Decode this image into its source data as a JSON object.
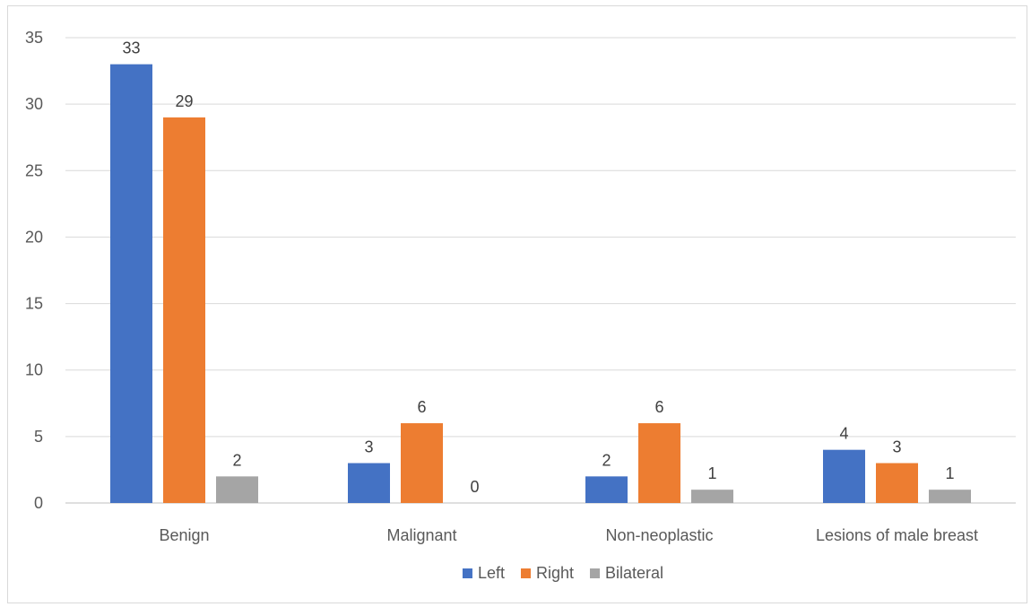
{
  "chart_data": {
    "type": "bar",
    "categories": [
      "Benign",
      "Malignant",
      "Non-neoplastic",
      "Lesions of male breast"
    ],
    "series": [
      {
        "name": "Left",
        "values": [
          33,
          3,
          2,
          4
        ],
        "color": "#4472C4"
      },
      {
        "name": "Right",
        "values": [
          29,
          6,
          6,
          3
        ],
        "color": "#ED7D31"
      },
      {
        "name": "Bilateral",
        "values": [
          2,
          0,
          1,
          1
        ],
        "color": "#A5A5A5"
      }
    ],
    "title": "",
    "xlabel": "",
    "ylabel": "",
    "ylim": [
      0,
      35
    ],
    "yticks": [
      0,
      5,
      10,
      15,
      20,
      25,
      30,
      35
    ],
    "grid": true,
    "legend_position": "bottom",
    "gridline_color": "#d9d9d9",
    "axis_line_color": "#bfbfbf"
  }
}
